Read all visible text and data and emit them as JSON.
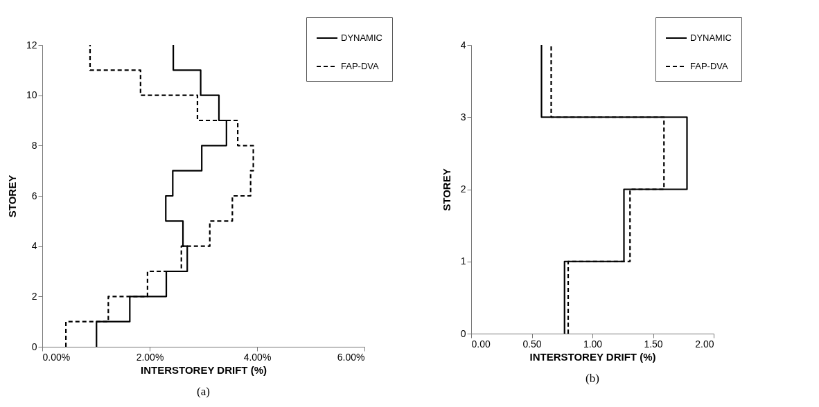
{
  "chart_data": [
    {
      "type": "line",
      "xlabel": "INTERSTOREY DRIFT (%)",
      "ylabel": "STOREY",
      "annotations": [
        "(a)"
      ],
      "legend": "top right",
      "xlim": [
        0,
        6
      ],
      "xticks": [
        {
          "value": 0,
          "label": "0.00%"
        },
        {
          "value": 2,
          "label": "2.00%"
        },
        {
          "value": 4,
          "label": "4.00%"
        },
        {
          "value": 6,
          "label": "6.00%"
        }
      ],
      "ylim": [
        0,
        12
      ],
      "yticks": [
        0,
        2,
        4,
        6,
        8,
        10,
        12
      ],
      "series": [
        {
          "name": "DYNAMIC",
          "color": "#000000",
          "line_style": "solid",
          "x": [
            1.01,
            1.01,
            1.63,
            1.63,
            2.31,
            2.31,
            2.7,
            2.7,
            2.62,
            2.62,
            2.3,
            2.3,
            2.43,
            2.43,
            2.97,
            2.97,
            3.43,
            3.43,
            3.29,
            3.29,
            2.95,
            2.95,
            2.44,
            2.44
          ],
          "values": [
            0,
            1,
            1,
            2,
            2,
            3,
            3,
            4,
            4,
            5,
            5,
            6,
            6,
            7,
            7,
            8,
            8,
            9,
            9,
            10,
            10,
            11,
            11,
            12
          ]
        },
        {
          "name": "FAP-DVA",
          "color": "#000000",
          "line_style": "dashed",
          "x": [
            0.44,
            0.44,
            1.23,
            1.23,
            1.96,
            1.96,
            2.59,
            2.59,
            3.12,
            3.12,
            3.54,
            3.54,
            3.88,
            3.88,
            3.93,
            3.93,
            3.64,
            3.64,
            2.89,
            2.89,
            1.83,
            1.83,
            0.89,
            0.89
          ],
          "values": [
            0,
            1,
            1,
            2,
            2,
            3,
            3,
            4,
            4,
            5,
            5,
            6,
            6,
            7,
            7,
            8,
            8,
            9,
            9,
            10,
            10,
            11,
            11,
            12
          ]
        }
      ]
    },
    {
      "type": "line",
      "xlabel": "INTERSTOREY DRIFT (%)",
      "ylabel": "STOREY",
      "annotations": [
        "(b)"
      ],
      "legend": "top right",
      "xlim": [
        0,
        2
      ],
      "xticks": [
        {
          "value": 0,
          "label": "0.00"
        },
        {
          "value": 0.5,
          "label": "0.50"
        },
        {
          "value": 1,
          "label": "1.00"
        },
        {
          "value": 1.5,
          "label": "1.50"
        },
        {
          "value": 2,
          "label": "2.00"
        }
      ],
      "ylim": [
        0,
        4
      ],
      "yticks": [
        0,
        1,
        2,
        3,
        4
      ],
      "series": [
        {
          "name": "DYNAMIC",
          "color": "#000000",
          "line_style": "solid",
          "x": [
            0.77,
            0.77,
            1.26,
            1.26,
            1.78,
            1.78,
            0.58,
            0.58
          ],
          "values": [
            0,
            1,
            1,
            2,
            2,
            3,
            3,
            4
          ]
        },
        {
          "name": "FAP-DVA",
          "color": "#000000",
          "line_style": "dashed",
          "x": [
            0.8,
            0.8,
            1.31,
            1.31,
            1.59,
            1.59,
            0.66,
            0.66
          ],
          "values": [
            0,
            1,
            1,
            2,
            2,
            3,
            3,
            4
          ]
        }
      ]
    }
  ]
}
